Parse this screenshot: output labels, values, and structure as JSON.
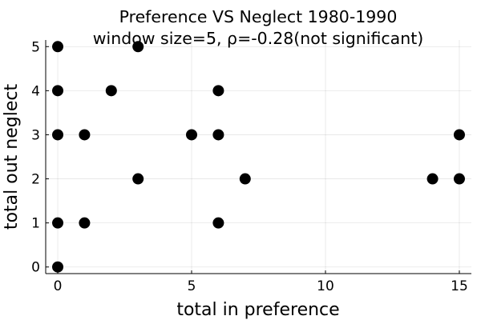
{
  "chart_data": {
    "type": "scatter",
    "title": "Preference VS Neglect 1980-1990",
    "subtitle": "window size=5, ρ=-0.28(not significant)",
    "xlabel": "total in preference",
    "ylabel": "total out neglect",
    "xlim": [
      -0.45,
      15.45
    ],
    "ylim": [
      -0.15,
      5.15
    ],
    "xticks": [
      0,
      5,
      10,
      15
    ],
    "yticks": [
      0,
      1,
      2,
      3,
      4,
      5
    ],
    "grid": true,
    "legend": "none",
    "marker_color": "#000000",
    "points": [
      {
        "x": 0,
        "y": 5
      },
      {
        "x": 3,
        "y": 5
      },
      {
        "x": 0,
        "y": 4
      },
      {
        "x": 2,
        "y": 4
      },
      {
        "x": 6,
        "y": 4
      },
      {
        "x": 0,
        "y": 3
      },
      {
        "x": 1,
        "y": 3
      },
      {
        "x": 5,
        "y": 3
      },
      {
        "x": 6,
        "y": 3
      },
      {
        "x": 15,
        "y": 3
      },
      {
        "x": 3,
        "y": 2
      },
      {
        "x": 7,
        "y": 2
      },
      {
        "x": 14,
        "y": 2
      },
      {
        "x": 15,
        "y": 2
      },
      {
        "x": 0,
        "y": 1
      },
      {
        "x": 1,
        "y": 1
      },
      {
        "x": 6,
        "y": 1
      },
      {
        "x": 0,
        "y": 0
      }
    ]
  }
}
